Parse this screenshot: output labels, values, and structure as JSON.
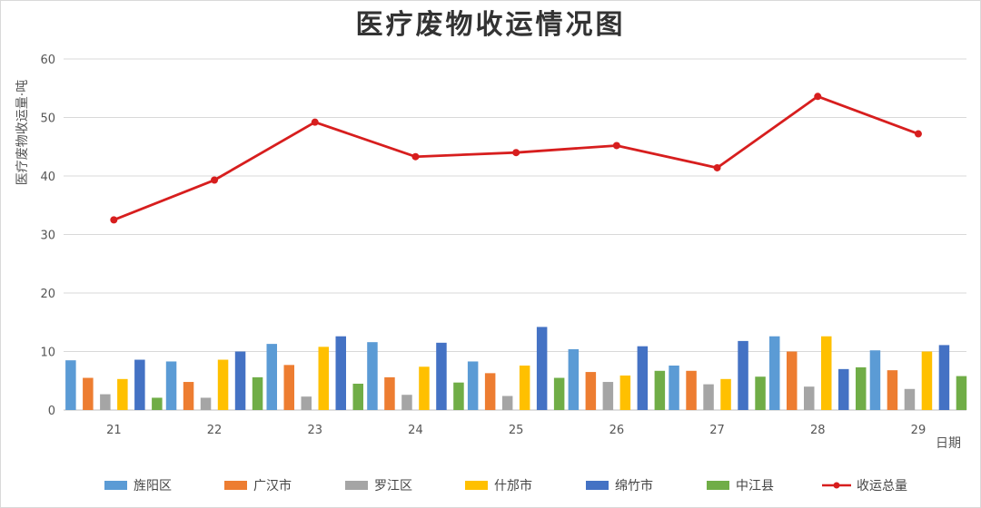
{
  "chart_data": {
    "type": "bar",
    "title": "医疗废物收运情况图",
    "xlabel": "日期",
    "ylabel": "医疗废物收运量·吨",
    "ylim": [
      0,
      60
    ],
    "yticks": [
      0,
      10,
      20,
      30,
      40,
      50,
      60
    ],
    "grid": true,
    "legend_position": "bottom",
    "categories": [
      "21",
      "22",
      "23",
      "24",
      "25",
      "26",
      "27",
      "28",
      "29"
    ],
    "series": [
      {
        "name": "旌阳区",
        "type": "bar",
        "color": "#5B9BD5",
        "values": [
          8.5,
          8.3,
          11.3,
          11.6,
          8.3,
          10.4,
          7.6,
          12.6,
          10.2
        ]
      },
      {
        "name": "广汉市",
        "type": "bar",
        "color": "#ED7D31",
        "values": [
          5.5,
          4.8,
          7.7,
          5.6,
          6.3,
          6.5,
          6.7,
          10.0,
          6.8
        ]
      },
      {
        "name": "罗江区",
        "type": "bar",
        "color": "#A5A5A5",
        "values": [
          2.7,
          2.1,
          2.3,
          2.6,
          2.4,
          4.8,
          4.4,
          4.0,
          3.6
        ]
      },
      {
        "name": "什邡市",
        "type": "bar",
        "color": "#FFC000",
        "values": [
          5.3,
          8.6,
          10.8,
          7.4,
          7.6,
          5.9,
          5.3,
          12.6,
          10.0
        ]
      },
      {
        "name": "绵竹市",
        "type": "bar",
        "color": "#4472C4",
        "values": [
          8.6,
          10.0,
          12.6,
          11.5,
          14.2,
          10.9,
          11.8,
          7.0,
          11.1
        ]
      },
      {
        "name": "中江县",
        "type": "bar",
        "color": "#70AD47",
        "values": [
          2.1,
          5.6,
          4.5,
          4.7,
          5.5,
          6.7,
          5.7,
          7.3,
          5.8
        ]
      },
      {
        "name": "收运总量",
        "type": "line",
        "color": "#D71E1E",
        "values": [
          32.5,
          39.3,
          49.2,
          43.3,
          44.0,
          45.2,
          41.4,
          53.6,
          47.2
        ]
      }
    ]
  }
}
